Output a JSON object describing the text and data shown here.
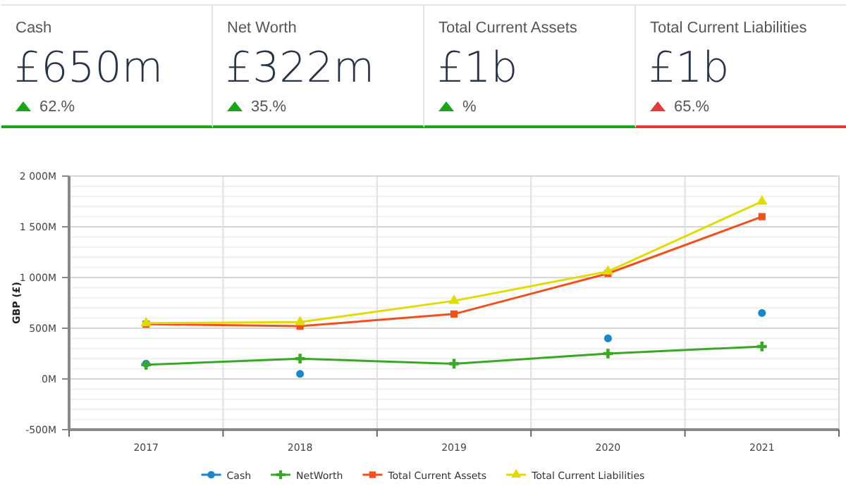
{
  "chart_data": [
    {
      "type": "other",
      "title": "Cash",
      "subtitle": "£650m",
      "annotations": [
        "62.%"
      ],
      "color": "#1aa51a"
    },
    {
      "type": "other",
      "title": "Net Worth",
      "subtitle": "£322m",
      "annotations": [
        "35.%"
      ],
      "color": "#1aa51a"
    },
    {
      "type": "other",
      "title": "Total Current Assets",
      "subtitle": "£1b",
      "annotations": [
        "%"
      ],
      "color": "#1aa51a"
    },
    {
      "type": "other",
      "title": "Total Current Liabilities",
      "subtitle": "£1b",
      "annotations": [
        "65.%"
      ],
      "color": "#e03c3c"
    },
    {
      "type": "line",
      "ylabel": "GBP (£)",
      "categories": [
        "2017",
        "2018",
        "2019",
        "2020",
        "2021"
      ],
      "series": [
        {
          "name": "Cash",
          "type": "scatter",
          "color": "#1a87c8",
          "marker": "circle",
          "values": [
            150,
            50,
            null,
            400,
            650
          ]
        },
        {
          "name": "NetWorth",
          "color": "#3aa827",
          "marker": "cross",
          "values": [
            140,
            200,
            150,
            250,
            320
          ]
        },
        {
          "name": "Total Current Assets",
          "color": "#f0501e",
          "marker": "square",
          "values": [
            540,
            520,
            640,
            1040,
            1600
          ]
        },
        {
          "name": "Total Current Liabilities",
          "color": "#e0dc00",
          "marker": "triangle",
          "values": [
            550,
            560,
            770,
            1060,
            1750
          ]
        }
      ],
      "ylim": [
        -500,
        2000
      ],
      "yticks": [
        {
          "value": -500,
          "label": "-500M"
        },
        {
          "value": -400,
          "label": null
        },
        {
          "value": -300,
          "label": null
        },
        {
          "value": -200,
          "label": null
        },
        {
          "value": -100,
          "label": null
        },
        {
          "value": 0,
          "label": "0M"
        },
        {
          "value": 100,
          "label": null
        },
        {
          "value": 200,
          "label": null
        },
        {
          "value": 300,
          "label": null
        },
        {
          "value": 400,
          "label": null
        },
        {
          "value": 500,
          "label": "500M"
        },
        {
          "value": 600,
          "label": null
        },
        {
          "value": 700,
          "label": null
        },
        {
          "value": 800,
          "label": null
        },
        {
          "value": 900,
          "label": null
        },
        {
          "value": 1000,
          "label": "1 000M"
        },
        {
          "value": 1100,
          "label": null
        },
        {
          "value": 1200,
          "label": null
        },
        {
          "value": 1300,
          "label": null
        },
        {
          "value": 1400,
          "label": null
        },
        {
          "value": 1500,
          "label": "1 500M"
        },
        {
          "value": 1600,
          "label": null
        },
        {
          "value": 1700,
          "label": null
        },
        {
          "value": 1800,
          "label": null
        },
        {
          "value": 1900,
          "label": null
        },
        {
          "value": 2000,
          "label": "2 000M"
        }
      ],
      "grid": true,
      "legend": "bottom",
      "line_style": "solid"
    }
  ]
}
